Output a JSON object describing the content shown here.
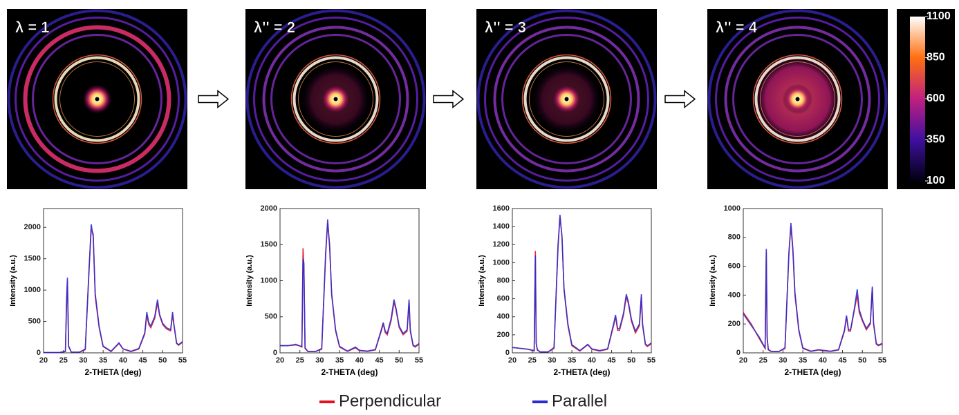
{
  "panels": [
    {
      "label": "λ = 1"
    },
    {
      "label": "λ'' = 2"
    },
    {
      "label": "λ'' = 3"
    },
    {
      "label": "λ'' = 4"
    }
  ],
  "colorbar": {
    "lim": [
      100,
      1100
    ],
    "ticks": [
      100,
      350,
      600,
      850,
      1100
    ]
  },
  "legend": {
    "items": [
      {
        "name": "Perpendicular",
        "color": "#e0141e"
      },
      {
        "name": "Parallel",
        "color": "#2b2bd0"
      }
    ]
  },
  "chart_data": [
    {
      "type": "line",
      "xlabel": "2-THETA (deg)",
      "ylabel": "Intensity (a.u.)",
      "x": [
        20,
        22,
        24,
        25.5,
        25.8,
        26,
        26.3,
        27,
        29,
        30.5,
        31.5,
        32,
        32.5,
        33,
        34,
        35,
        37,
        39,
        40,
        42,
        44,
        45.5,
        46,
        46.5,
        47,
        48,
        48.7,
        49.2,
        50,
        51,
        52,
        52.5,
        52.8,
        53.5,
        54,
        55
      ],
      "xlim": [
        20,
        55
      ],
      "xticks": [
        20,
        25,
        30,
        35,
        40,
        45,
        50,
        55
      ],
      "ylim": [
        0,
        2300
      ],
      "yticks": [
        0,
        500,
        1000,
        1500,
        2000
      ],
      "series": [
        {
          "values": [
            5,
            5,
            5,
            20,
            800,
            1150,
            100,
            10,
            10,
            50,
            1400,
            1950,
            1900,
            900,
            400,
            100,
            20,
            150,
            60,
            20,
            60,
            300,
            600,
            450,
            400,
            550,
            800,
            600,
            450,
            380,
            350,
            600,
            450,
            150,
            120,
            170
          ]
        },
        {
          "values": [
            5,
            5,
            5,
            25,
            850,
            1200,
            110,
            10,
            10,
            60,
            1350,
            2050,
            1850,
            950,
            420,
            110,
            25,
            160,
            65,
            25,
            70,
            320,
            650,
            480,
            430,
            580,
            850,
            620,
            470,
            400,
            370,
            650,
            470,
            160,
            130,
            180
          ]
        }
      ]
    },
    {
      "type": "line",
      "xlabel": "2-THETA (deg)",
      "ylabel": "Intensity (a.u.)",
      "x": [
        20,
        22,
        24,
        25.5,
        25.8,
        26,
        26.3,
        27,
        29,
        30.5,
        31.5,
        32,
        32.5,
        33,
        34,
        35,
        37,
        39,
        40,
        42,
        44,
        45.5,
        46,
        46.5,
        47,
        48,
        48.7,
        49.2,
        50,
        51,
        52,
        52.5,
        52.8,
        53.5,
        54,
        55
      ],
      "xlim": [
        20,
        55
      ],
      "xticks": [
        20,
        25,
        30,
        35,
        40,
        45,
        50,
        55
      ],
      "ylim": [
        0,
        2000
      ],
      "yticks": [
        0,
        500,
        1000,
        1500,
        2000
      ],
      "series": [
        {
          "values": [
            100,
            100,
            120,
            80,
            1450,
            1200,
            60,
            20,
            20,
            50,
            1400,
            1800,
            1500,
            800,
            300,
            80,
            20,
            70,
            30,
            20,
            40,
            300,
            400,
            280,
            250,
            450,
            700,
            600,
            350,
            250,
            300,
            700,
            300,
            100,
            80,
            120
          ]
        },
        {
          "values": [
            100,
            100,
            110,
            90,
            1300,
            1250,
            70,
            20,
            20,
            60,
            1350,
            1850,
            1450,
            820,
            320,
            90,
            25,
            80,
            35,
            25,
            45,
            320,
            420,
            300,
            270,
            480,
            740,
            620,
            370,
            270,
            320,
            740,
            320,
            110,
            90,
            130
          ]
        }
      ]
    },
    {
      "type": "line",
      "xlabel": "2-THETA (deg)",
      "ylabel": "Intensity (a.u.)",
      "x": [
        20,
        22,
        24,
        25.5,
        25.8,
        26,
        26.3,
        27,
        29,
        30.5,
        31.5,
        32,
        32.5,
        33,
        34,
        35,
        37,
        39,
        40,
        42,
        44,
        45.5,
        46,
        46.5,
        47,
        48,
        48.7,
        49.2,
        50,
        51,
        52,
        52.5,
        52.8,
        53.5,
        54,
        55
      ],
      "xlim": [
        20,
        55
      ],
      "xticks": [
        20,
        25,
        30,
        35,
        40,
        45,
        50,
        55
      ],
      "ylim": [
        0,
        1600
      ],
      "yticks": [
        0,
        200,
        400,
        600,
        800,
        1000,
        1200,
        1400,
        1600
      ],
      "series": [
        {
          "values": [
            60,
            50,
            40,
            20,
            1130,
            100,
            30,
            10,
            10,
            50,
            1200,
            1500,
            1300,
            700,
            300,
            80,
            20,
            90,
            40,
            20,
            40,
            300,
            400,
            250,
            250,
            420,
            620,
            550,
            350,
            220,
            300,
            620,
            300,
            90,
            70,
            100
          ]
        },
        {
          "values": [
            60,
            50,
            40,
            25,
            1080,
            110,
            35,
            10,
            10,
            60,
            1150,
            1530,
            1280,
            720,
            320,
            90,
            25,
            95,
            45,
            25,
            45,
            320,
            420,
            270,
            270,
            440,
            650,
            570,
            370,
            240,
            320,
            650,
            320,
            100,
            80,
            110
          ]
        }
      ]
    },
    {
      "type": "line",
      "xlabel": "2-THETA (deg)",
      "ylabel": "Intensity (a.u.)",
      "x": [
        20,
        22,
        24,
        25.5,
        25.8,
        26,
        26.3,
        27,
        29,
        30.5,
        31.5,
        32,
        32.5,
        33,
        34,
        35,
        37,
        39,
        40,
        42,
        44,
        45.5,
        46,
        46.5,
        47,
        48,
        48.7,
        49.2,
        50,
        51,
        52,
        52.5,
        52.8,
        53.5,
        54,
        55
      ],
      "xlim": [
        20,
        55
      ],
      "xticks": [
        20,
        25,
        30,
        35,
        40,
        45,
        50,
        55
      ],
      "ylim": [
        0,
        1000
      ],
      "yticks": [
        0,
        200,
        400,
        600,
        800,
        1000
      ],
      "series": [
        {
          "values": [
            280,
            200,
            100,
            30,
            700,
            100,
            20,
            10,
            10,
            30,
            700,
            880,
            700,
            400,
            150,
            30,
            10,
            20,
            15,
            10,
            20,
            150,
            250,
            150,
            150,
            300,
            400,
            280,
            220,
            160,
            200,
            450,
            200,
            60,
            50,
            60
          ]
        },
        {
          "values": [
            270,
            190,
            110,
            35,
            720,
            110,
            25,
            10,
            10,
            35,
            680,
            900,
            720,
            420,
            160,
            35,
            12,
            22,
            18,
            12,
            22,
            160,
            260,
            160,
            160,
            310,
            440,
            300,
            230,
            170,
            210,
            460,
            210,
            65,
            55,
            65
          ]
        }
      ]
    }
  ]
}
